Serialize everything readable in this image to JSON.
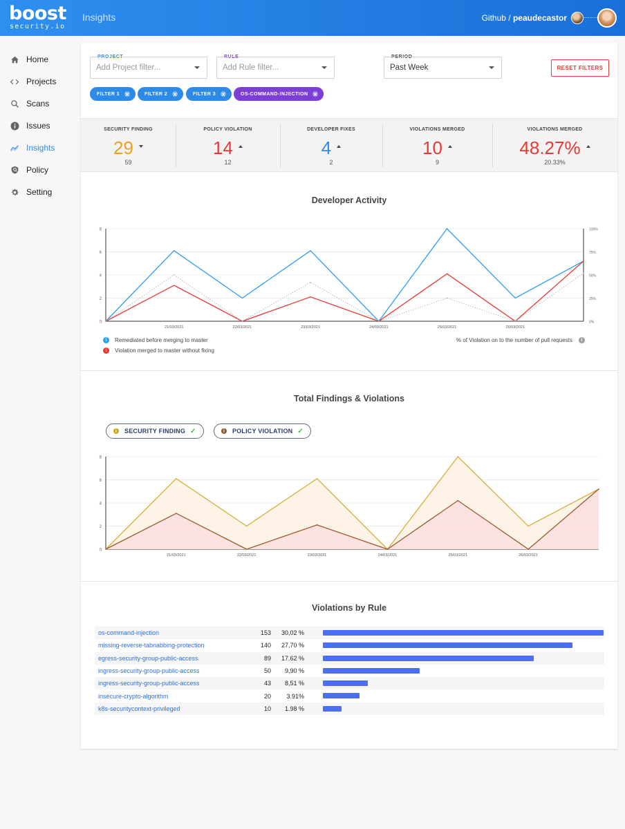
{
  "header": {
    "logo_main": "boost",
    "logo_sub": "security.io",
    "app_title": "Insights",
    "breadcrumb_org": "Github /",
    "breadcrumb_user": "peaudecastor"
  },
  "sidebar": {
    "items": [
      {
        "label": "Home",
        "icon": "home-icon"
      },
      {
        "label": "Projects",
        "icon": "code-icon"
      },
      {
        "label": "Scans",
        "icon": "search-icon"
      },
      {
        "label": "Issues",
        "icon": "info-icon"
      },
      {
        "label": "Insights",
        "icon": "trend-icon",
        "active": true
      },
      {
        "label": "Policy",
        "icon": "shield-icon"
      },
      {
        "label": "Setting",
        "icon": "gear-icon"
      }
    ]
  },
  "filters": {
    "project": {
      "label": "PROJECT",
      "placeholder": "Add Project filter..."
    },
    "rule": {
      "label": "RULE",
      "placeholder": "Add Rule filter..."
    },
    "period": {
      "label": "PERIOD",
      "value": "Past Week"
    },
    "reset_label": "RESET FILTERS",
    "chips": [
      "FILTER 1",
      "FILTER 2",
      "FILTER 3",
      "OS-COMMAND-INJECTION"
    ]
  },
  "stats": [
    {
      "label": "SECURITY FINDING",
      "value": "29",
      "sub": "59",
      "trend": "down",
      "color": "#f0a01e"
    },
    {
      "label": "POLICY VIOLATION",
      "value": "14",
      "sub": "12",
      "trend": "up",
      "color": "#e53935"
    },
    {
      "label": "DEVELOPER FIXES",
      "value": "4",
      "sub": "2",
      "trend": "up",
      "color": "#2d8ae6"
    },
    {
      "label": "VIOLATIONS MERGED",
      "value": "10",
      "sub": "9",
      "trend": "up",
      "color": "#e53935"
    },
    {
      "label": "VIOLATIONS MERGED",
      "value": "48.27%",
      "sub": "20.33%",
      "trend": "up",
      "color": "#e53935"
    }
  ],
  "developer_activity": {
    "title": "Developer Activity",
    "legend": {
      "remediated": "Remediated before merging to master",
      "violation": "Violation merged to master without fixing",
      "pct": "% of Violation on to the number of pull requests"
    }
  },
  "findings": {
    "title": "Total Findings & Violations",
    "toggle_security": "SECURITY FINDING",
    "toggle_policy": "POLICY VIOLATION"
  },
  "chart_data": [
    {
      "type": "line",
      "title": "Developer Activity",
      "x": [
        "",
        "21/03/2021",
        "22/03/2021",
        "23/03/2021",
        "24/03/2021",
        "25/03/2021",
        "26/03/2021",
        ""
      ],
      "yticks": [
        "0",
        "2",
        "4",
        "6",
        "8"
      ],
      "ylim": [
        0,
        8
      ],
      "y2ticks": [
        "0%",
        "25%",
        "50%",
        "75%",
        "100%"
      ],
      "y2lim": [
        0,
        100
      ],
      "series": [
        {
          "name": "Remediated before merging to master",
          "color": "#2d9cf0",
          "values": [
            0,
            6.1,
            2,
            6.1,
            0,
            8,
            2,
            5.2
          ]
        },
        {
          "name": "Violation merged to master without fixing",
          "color": "#e53935",
          "values": [
            0,
            3.1,
            0,
            2.1,
            0,
            4.1,
            0,
            5.2
          ]
        },
        {
          "name": "% of Violation on to the number of pull requests",
          "color": "#b0b0b0",
          "axis": "y2",
          "dashed": true,
          "values": [
            0,
            50,
            0,
            42,
            0,
            25,
            0,
            52
          ]
        }
      ],
      "grid": true
    },
    {
      "type": "area",
      "title": "Total Findings & Violations",
      "x": [
        "",
        "21/03/2021",
        "22/03/2021",
        "23/03/2021",
        "24/03/2021",
        "25/03/2021",
        "26/03/2021",
        ""
      ],
      "yticks": [
        "0",
        "2",
        "4",
        "6",
        "8"
      ],
      "ylim": [
        0,
        8
      ],
      "series": [
        {
          "name": "SECURITY FINDING",
          "color": "#d4ae3a",
          "fill": "#fdf1e3",
          "values": [
            0,
            6.1,
            2,
            6.1,
            0,
            8,
            2,
            5.2
          ]
        },
        {
          "name": "POLICY VIOLATION",
          "color": "#9a5a2e",
          "fill": "#fbdede",
          "values": [
            0,
            3.1,
            0,
            2.1,
            0,
            4.2,
            0,
            5.2
          ]
        }
      ],
      "grid": true
    }
  ],
  "violations": {
    "title": "Violations by Rule",
    "rows": [
      {
        "rule": "os-command-injection",
        "count": "153",
        "pct": "30,02 %",
        "fraction": 1.0
      },
      {
        "rule": "missing-reverse-tabnabbing-protection",
        "count": "140",
        "pct": "27,70 %",
        "fraction": 0.89
      },
      {
        "rule": "egress-security-group-public-access",
        "count": "89",
        "pct": "17.62 %",
        "fraction": 0.75
      },
      {
        "rule": "ingress-security-group-public-access",
        "count": "50",
        "pct": "9,90 %",
        "fraction": 0.344
      },
      {
        "rule": "ingress-security-group-public-access",
        "count": "43",
        "pct": "8,51 %",
        "fraction": 0.16
      },
      {
        "rule": "insecure-crypto-algorithm",
        "count": "20",
        "pct": "3.91%",
        "fraction": 0.13
      },
      {
        "rule": "k8s-securitycontext-privileged",
        "count": "10",
        "pct": "1.98 %",
        "fraction": 0.066
      }
    ]
  }
}
